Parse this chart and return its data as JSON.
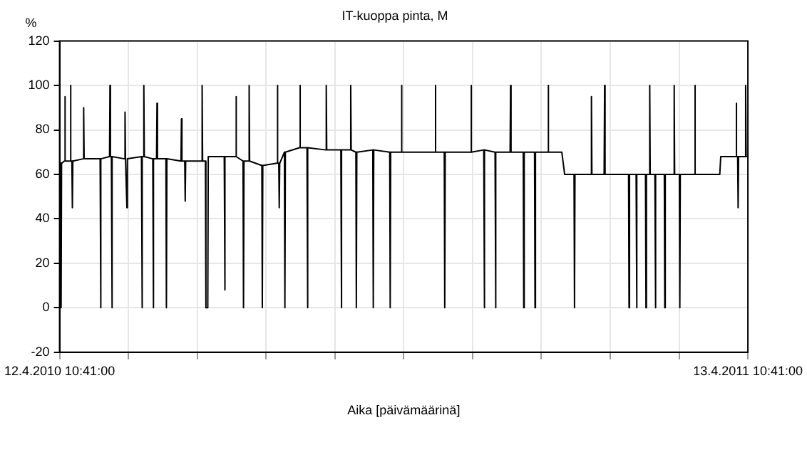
{
  "chart_data": {
    "type": "line",
    "title": "IT-kuoppa pinta, M",
    "xlabel": "Aika [päivämäärinä]",
    "ylabel": "%",
    "xlim": [
      "2010-04-12T10:41",
      "2011-04-13T10:41"
    ],
    "xticks": [
      {
        "value": "2010-04-12T10:41",
        "label": "12.4.2010 10:41:00"
      },
      {
        "value": "2010-05-19T01:05",
        "label": null
      },
      {
        "value": "2010-06-24T15:29",
        "label": null
      },
      {
        "value": "2010-07-31T05:53",
        "label": null
      },
      {
        "value": "2010-09-05T20:17",
        "label": null
      },
      {
        "value": "2010-10-12T10:41",
        "label": null
      },
      {
        "value": "2010-11-18T01:05",
        "label": null
      },
      {
        "value": "2010-12-24T15:29",
        "label": null
      },
      {
        "value": "2011-01-30T05:53",
        "label": null
      },
      {
        "value": "2011-03-07T20:17",
        "label": null
      },
      {
        "value": "2011-04-13T10:41",
        "label": "13.4.2011 10:41:00"
      }
    ],
    "ylim": [
      -20,
      120
    ],
    "yticks": [
      -20,
      0,
      20,
      40,
      60,
      80,
      100,
      120
    ],
    "grid": true,
    "marker": "none",
    "line_style": "solid",
    "series": [
      {
        "color": "#000000",
        "x": [
          "2010-04-12T12:00",
          "2010-04-13T00:00",
          "2010-04-13T06:00",
          "2010-04-13T12:00",
          "2010-04-15T00:00",
          "2010-04-15T06:00",
          "2010-04-15T12:00",
          "2010-04-18T00:00",
          "2010-04-18T06:00",
          "2010-04-18T12:00",
          "2010-04-19T00:00",
          "2010-04-19T06:00",
          "2010-04-19T12:00",
          "2010-04-25T00:00",
          "2010-04-25T06:00",
          "2010-04-25T12:00",
          "2010-05-04T00:00",
          "2010-05-04T06:00",
          "2010-05-04T12:00",
          "2010-05-09T00:00",
          "2010-05-09T06:00",
          "2010-05-09T12:00",
          "2010-05-10T00:00",
          "2010-05-10T06:00",
          "2010-05-10T12:00",
          "2010-05-17T00:00",
          "2010-05-17T06:00",
          "2010-05-17T12:00",
          "2010-05-18T00:00",
          "2010-05-18T06:00",
          "2010-05-18T12:00",
          "2010-05-26T00:00",
          "2010-05-26T06:00",
          "2010-05-26T12:00",
          "2010-05-27T00:00",
          "2010-05-27T06:00",
          "2010-05-27T12:00",
          "2010-06-01T00:00",
          "2010-06-01T06:00",
          "2010-06-01T12:00",
          "2010-06-03T00:00",
          "2010-06-03T06:00",
          "2010-06-03T12:00",
          "2010-06-08T00:00",
          "2010-06-08T06:00",
          "2010-06-08T12:00",
          "2010-06-16T00:00",
          "2010-06-16T06:00",
          "2010-06-16T12:00",
          "2010-06-18T00:00",
          "2010-06-18T06:00",
          "2010-06-18T12:00",
          "2010-06-27T00:00",
          "2010-06-27T06:00",
          "2010-06-27T12:00",
          "2010-06-29T00:00",
          "2010-06-29T06:00",
          "2010-06-30T06:00",
          "2010-06-30T12:00",
          "2010-07-09T00:00",
          "2010-07-09T06:00",
          "2010-07-09T12:00",
          "2010-07-15T00:00",
          "2010-07-15T06:00",
          "2010-07-15T12:00",
          "2010-07-19T00:00",
          "2010-07-19T06:00",
          "2010-07-19T12:00",
          "2010-07-22T00:00",
          "2010-07-22T06:00",
          "2010-07-22T12:00",
          "2010-07-29T00:00",
          "2010-07-29T06:00",
          "2010-07-29T12:00",
          "2010-08-06T00:00",
          "2010-08-06T06:00",
          "2010-08-06T12:00",
          "2010-08-07T00:00",
          "2010-08-07T06:00",
          "2010-08-07T12:00",
          "2010-08-10T00:00",
          "2010-08-10T06:00",
          "2010-08-10T12:00",
          "2010-08-18T00:00",
          "2010-08-18T06:00",
          "2010-08-18T12:00",
          "2010-08-22T00:00",
          "2010-08-22T06:00",
          "2010-08-22T12:00",
          "2010-09-01T00:00",
          "2010-09-01T06:00",
          "2010-09-01T12:00",
          "2010-09-09T00:00",
          "2010-09-09T06:00",
          "2010-09-09T12:00",
          "2010-09-14T00:00",
          "2010-09-14T06:00",
          "2010-09-14T12:00",
          "2010-09-17T00:00",
          "2010-09-17T06:00",
          "2010-09-17T12:00",
          "2010-09-26T00:00",
          "2010-09-26T06:00",
          "2010-09-26T12:00",
          "2010-10-05T00:00",
          "2010-10-05T06:00",
          "2010-10-05T12:00",
          "2010-10-11T00:00",
          "2010-10-11T06:00",
          "2010-10-11T12:00",
          "2010-10-29T00:00",
          "2010-10-29T06:00",
          "2010-10-29T12:00",
          "2010-11-03T00:00",
          "2010-11-03T06:00",
          "2010-11-03T12:00",
          "2010-11-17T00:00",
          "2010-11-17T06:00",
          "2010-11-17T12:00",
          "2010-11-24T00:00",
          "2010-11-24T06:00",
          "2010-11-24T12:00",
          "2010-11-30T00:00",
          "2010-11-30T06:00",
          "2010-11-30T12:00",
          "2010-12-08T00:00",
          "2010-12-08T06:00",
          "2010-12-08T12:00",
          "2010-12-15T00:00",
          "2010-12-15T06:00",
          "2010-12-15T12:00",
          "2010-12-21T00:00",
          "2010-12-21T06:00",
          "2010-12-21T12:00",
          "2010-12-28T00:00",
          "2010-12-28T06:00",
          "2010-12-28T12:00",
          "2011-01-04T12:00",
          "2011-01-06T00:00",
          "2011-01-11T00:00",
          "2011-01-11T06:00",
          "2011-01-11T12:00",
          "2011-01-20T00:00",
          "2011-01-20T06:00",
          "2011-01-20T12:00",
          "2011-01-27T00:00",
          "2011-01-27T06:00",
          "2011-01-27T12:00",
          "2011-02-09T00:00",
          "2011-02-09T06:00",
          "2011-02-09T12:00",
          "2011-02-13T00:00",
          "2011-02-13T06:00",
          "2011-02-13T12:00",
          "2011-02-18T00:00",
          "2011-02-18T06:00",
          "2011-02-18T12:00",
          "2011-02-20T00:00",
          "2011-02-20T06:00",
          "2011-02-20T12:00",
          "2011-02-23T00:00",
          "2011-02-23T06:00",
          "2011-02-23T12:00",
          "2011-02-28T00:00",
          "2011-02-28T06:00",
          "2011-02-28T12:00",
          "2011-03-05T00:00",
          "2011-03-05T06:00",
          "2011-03-05T12:00",
          "2011-03-08T00:00",
          "2011-03-08T06:00",
          "2011-03-08T12:00",
          "2011-03-16T00:00",
          "2011-03-16T06:00",
          "2011-03-16T12:00",
          "2011-03-29T12:00",
          "2011-03-30T00:00",
          "2011-04-07T00:00",
          "2011-04-07T06:00",
          "2011-04-07T12:00",
          "2011-04-08T00:00",
          "2011-04-08T06:00",
          "2011-04-08T12:00",
          "2011-04-12T00:00",
          "2011-04-12T06:00",
          "2011-04-12T12:00",
          "2011-04-13T10:00"
        ],
        "values": [
          65,
          65,
          0,
          65,
          66,
          95,
          66,
          66,
          100,
          66,
          66,
          45,
          66,
          67,
          90,
          67,
          67,
          0,
          67,
          68,
          100,
          68,
          68,
          0,
          68,
          67,
          88,
          67,
          67,
          45,
          67,
          68,
          0,
          68,
          68,
          100,
          68,
          67,
          0,
          67,
          67,
          92,
          67,
          67,
          0,
          67,
          66,
          85,
          66,
          66,
          48,
          66,
          66,
          100,
          66,
          66,
          0,
          0,
          68,
          68,
          8,
          68,
          68,
          95,
          68,
          66,
          0,
          66,
          66,
          100,
          66,
          64,
          0,
          64,
          65,
          100,
          65,
          65,
          45,
          65,
          70,
          0,
          70,
          72,
          100,
          72,
          72,
          0,
          72,
          71,
          100,
          71,
          71,
          0,
          71,
          71,
          100,
          71,
          70,
          0,
          70,
          71,
          0,
          71,
          70,
          0,
          70,
          70,
          100,
          70,
          70,
          100,
          70,
          70,
          0,
          70,
          70,
          100,
          70,
          71,
          0,
          71,
          70,
          0,
          70,
          70,
          100,
          70,
          70,
          0,
          70,
          70,
          0,
          70,
          70,
          100,
          70,
          70,
          60,
          60,
          0,
          60,
          60,
          95,
          60,
          60,
          100,
          60,
          60,
          0,
          60,
          60,
          0,
          60,
          60,
          0,
          60,
          60,
          100,
          60,
          60,
          0,
          60,
          60,
          0,
          60,
          60,
          100,
          60,
          60,
          0,
          60,
          60,
          100,
          60,
          60,
          68,
          68,
          92,
          68,
          68,
          45,
          68,
          68,
          100,
          68,
          68
        ]
      }
    ]
  }
}
